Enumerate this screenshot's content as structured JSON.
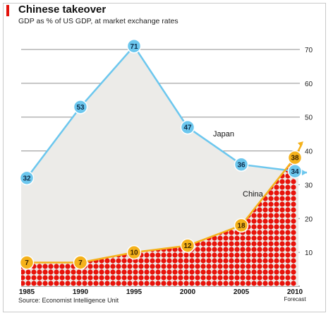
{
  "chart_data": {
    "type": "line",
    "title": "Chinese takeover",
    "subtitle": "GDP as % of US GDP,  at market exchange rates",
    "source": "Source: Economist Intelligence Unit",
    "x": [
      "1985",
      "1990",
      "1995",
      "2000",
      "2005",
      "2010"
    ],
    "x_extra_label": "Forecast",
    "series": [
      {
        "name": "Japan",
        "values": [
          32,
          53,
          71,
          47,
          36,
          34
        ],
        "color": "#6cc7ee"
      },
      {
        "name": "China",
        "values": [
          7,
          7,
          10,
          12,
          18,
          38
        ],
        "color": "#f5b21b"
      }
    ],
    "yticks": [
      10,
      20,
      30,
      40,
      50,
      60,
      70
    ],
    "ylim": [
      0,
      76
    ],
    "ylabel": "",
    "xlabel": "",
    "grid": true,
    "colors": {
      "japan_fill": "#ecebe8",
      "china_fill": "#e8120a"
    }
  }
}
